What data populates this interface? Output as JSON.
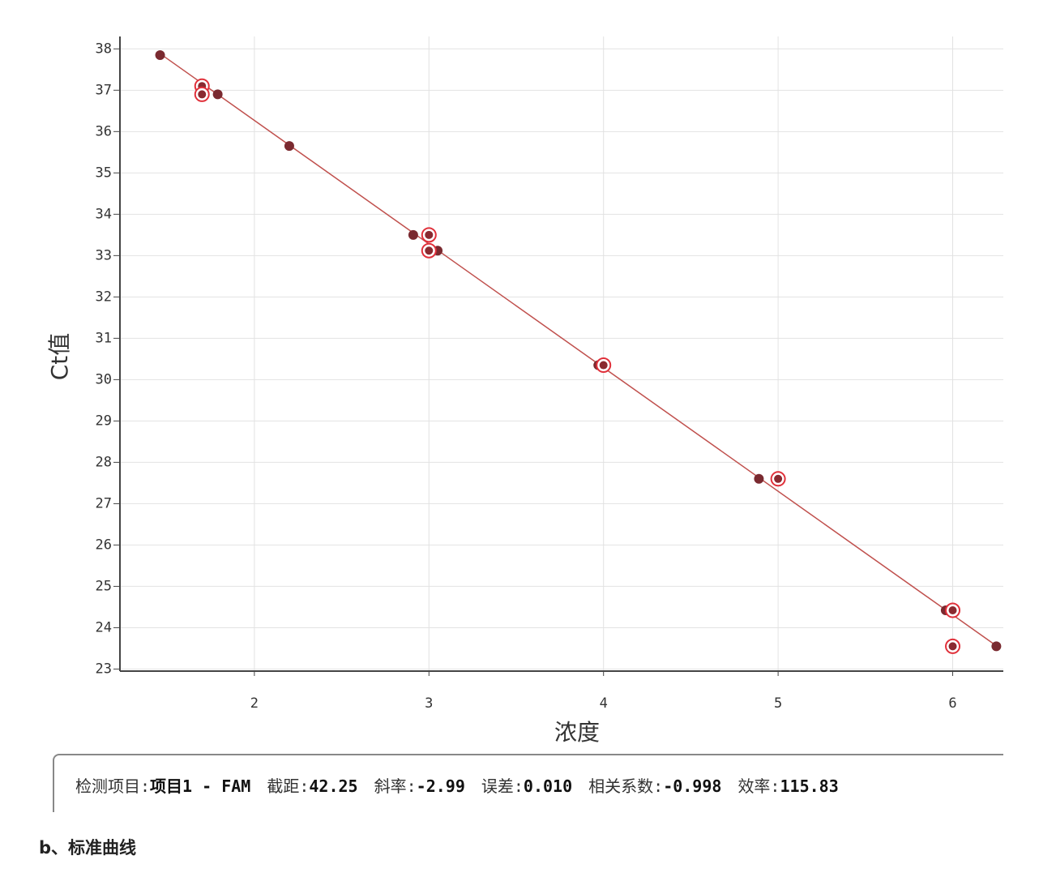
{
  "chart_data": {
    "type": "scatter",
    "x_label": "浓度",
    "y_label": "Ct值",
    "xlim": [
      1.23,
      6.29
    ],
    "ylim": [
      22.95,
      38.3
    ],
    "xticks": [
      2,
      3,
      4,
      5,
      6
    ],
    "yticks": [
      23,
      24,
      25,
      26,
      27,
      28,
      29,
      30,
      31,
      32,
      33,
      34,
      35,
      36,
      37,
      38
    ],
    "grid": true,
    "series": [
      {
        "color": "#7a2a30",
        "x": [
          1.46,
          1.79,
          2.2,
          2.91,
          3.05,
          3.97,
          4.89,
          5.96,
          6.25
        ],
        "values": [
          37.85,
          36.9,
          35.65,
          33.5,
          33.12,
          30.35,
          27.6,
          24.42,
          23.55
        ]
      },
      {
        "color": "#e0303a",
        "x": [
          1.7,
          1.7,
          3,
          3,
          4,
          5,
          6,
          6
        ],
        "values": [
          37.1,
          36.9,
          33.5,
          33.12,
          30.35,
          27.6,
          24.42,
          23.55
        ]
      }
    ],
    "fit_color": "#c0504d",
    "stats": [
      {
        "label": "检测项目:",
        "value": "项目1 - FAM"
      },
      {
        "label": "截距:",
        "value": 42.25
      },
      {
        "label": "斜率:",
        "value": -2.99
      },
      {
        "label": "误差:",
        "value": "0.010"
      },
      {
        "label": "相关系数:",
        "value": -0.998
      },
      {
        "label": "效率:",
        "value": 115.83
      }
    ]
  },
  "caption": "b、标准曲线"
}
